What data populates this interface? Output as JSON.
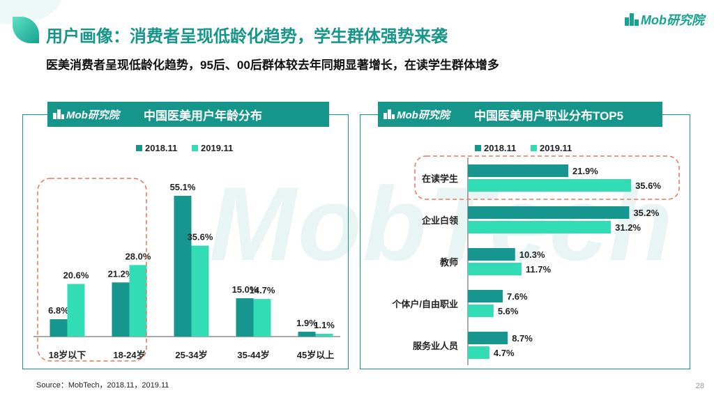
{
  "page": {
    "title": "用户画像：消费者呈现低龄化趋势，学生群体强势来袭",
    "subtitle": "医美消费者呈现低龄化趋势，95后、00后群体较去年同期显著增长，在读学生群体增多",
    "brand": "Mob研究院",
    "watermark": "MobTech",
    "source": "Source：MobTech，2018.11，2019.11",
    "page_number": "28"
  },
  "colors": {
    "series_2018": "#17968f",
    "series_2019": "#32dcb5",
    "accent": "#16968a",
    "highlight": "#e8765a"
  },
  "chart_data": [
    {
      "type": "bar",
      "title": "中国医美用户年龄分布",
      "brand": "Mob研究院",
      "categories": [
        "18岁以下",
        "18-24岁",
        "25-34岁",
        "35-44岁",
        "45岁以上"
      ],
      "series": [
        {
          "name": "2018.11",
          "values": [
            6.8,
            21.2,
            55.1,
            15.0,
            1.9
          ],
          "labels": [
            "6.8%",
            "21.2%",
            "55.1%",
            "15.0%",
            "1.9%"
          ]
        },
        {
          "name": "2019.11",
          "values": [
            20.6,
            28.0,
            35.6,
            14.7,
            1.1
          ],
          "labels": [
            "20.6%",
            "28.0%",
            "35.6%",
            "14.7%",
            "1.1%"
          ]
        }
      ],
      "ylim": [
        0,
        60
      ],
      "legend": "top-center",
      "grid": false,
      "highlighted_categories": [
        "18岁以下",
        "18-24岁"
      ]
    },
    {
      "type": "bar",
      "orientation": "horizontal",
      "title": "中国医美用户职业分布TOP5",
      "brand": "Mob研究院",
      "categories": [
        "在读学生",
        "企业白领",
        "教师",
        "个体户/自由职业",
        "服务业人员"
      ],
      "series": [
        {
          "name": "2018.11",
          "values": [
            21.9,
            35.2,
            10.3,
            7.6,
            8.7
          ],
          "labels": [
            "21.9%",
            "35.2%",
            "10.3%",
            "7.6%",
            "8.7%"
          ]
        },
        {
          "name": "2019.11",
          "values": [
            35.6,
            31.2,
            11.7,
            5.6,
            4.7
          ],
          "labels": [
            "35.6%",
            "31.2%",
            "11.7%",
            "5.6%",
            "4.7%"
          ]
        }
      ],
      "xlim": [
        0,
        40
      ],
      "legend": "top-center",
      "grid": false,
      "highlighted_categories": [
        "在读学生"
      ]
    }
  ]
}
